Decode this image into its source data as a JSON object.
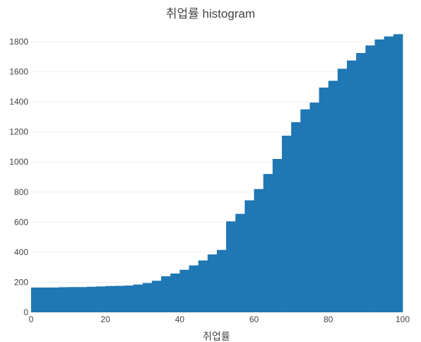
{
  "chart_data": {
    "type": "bar",
    "title": "취업률 histogram",
    "xlabel": "취업률",
    "ylabel": "",
    "xlim": [
      0,
      100
    ],
    "ylim": [
      0,
      1880
    ],
    "xticks": [
      0,
      20,
      40,
      60,
      80,
      100
    ],
    "yticks": [
      0,
      200,
      400,
      600,
      800,
      1000,
      1200,
      1400,
      1600,
      1800
    ],
    "grid": true,
    "bin_width": 2.5,
    "bins_start": [
      0,
      2.5,
      5,
      7.5,
      10,
      12.5,
      15,
      17.5,
      20,
      22.5,
      25,
      27.5,
      30,
      32.5,
      35,
      37.5,
      40,
      42.5,
      45,
      47.5,
      50,
      52.5,
      55,
      57.5,
      60,
      62.5,
      65,
      67.5,
      70,
      72.5,
      75,
      77.5,
      80,
      82.5,
      85,
      87.5,
      90,
      92.5,
      95,
      97.5
    ],
    "values": [
      165,
      165,
      165,
      167,
      168,
      168,
      170,
      172,
      175,
      176,
      178,
      185,
      195,
      210,
      240,
      258,
      283,
      312,
      345,
      385,
      415,
      605,
      655,
      745,
      820,
      920,
      1020,
      1175,
      1265,
      1350,
      1395,
      1495,
      1540,
      1620,
      1675,
      1725,
      1775,
      1815,
      1835,
      1850
    ],
    "color": "#1f77b4"
  }
}
